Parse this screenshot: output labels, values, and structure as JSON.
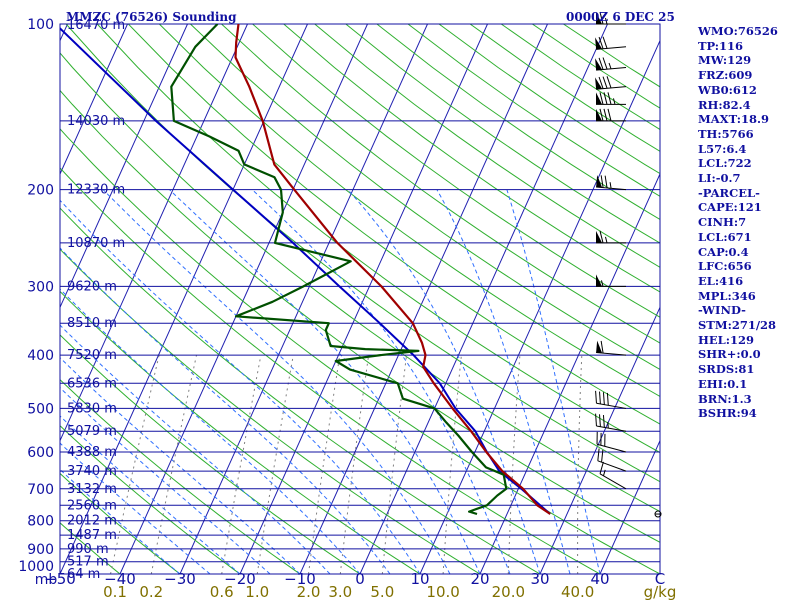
{
  "header": {
    "station": "MMZC (76526) Sounding",
    "time": "0000Z  6 DEC 25"
  },
  "stats": [
    "WMO:76526",
    "TP:116",
    "MW:129",
    "FRZ:609",
    "WB0:612",
    "RH:82.4",
    "MAXT:18.9",
    "TH:5766",
    "L57:6.4",
    "LCL:722",
    "LI:-0.7",
    "-PARCEL-",
    "CAPE:121",
    "CINH:7",
    "LCL:671",
    "CAP:0.4",
    "LFC:656",
    "EL:416",
    "MPL:346",
    "-WIND-",
    "STM:271/28",
    "HEL:129",
    "SHR+:0.0",
    "SRDS:81",
    "EHI:0.1",
    "BRN:1.3",
    "BSHR:94"
  ],
  "colors": {
    "isobar": "#1010a0",
    "isotherm": "#2020b0",
    "dry_adiabat": "#30b030",
    "moist_adiabat": "#3070ff",
    "mixing_ratio": "#808080",
    "temperature": "#a00000",
    "dewpoint": "#005000",
    "parcel": "#0000c0",
    "axis_label": "#1010a0",
    "mixing_label": "#807000",
    "wind_barb": "#000000"
  },
  "chart_data": {
    "type": "skew-t",
    "pressure_axis": {
      "ticks": [
        100,
        200,
        300,
        400,
        500,
        600,
        700,
        800,
        900,
        1000
      ],
      "unit_label": "mb",
      "range": [
        100,
        1000
      ]
    },
    "temperature_axis": {
      "ticks": [
        -50,
        -40,
        -30,
        -20,
        -10,
        0,
        10,
        20,
        30,
        40
      ],
      "extra_label": "C",
      "range": [
        -50,
        50
      ]
    },
    "mixing_ratio_labels": [
      "0.1",
      "0.2",
      "0.6",
      "1.0",
      "2.0",
      "3.0",
      "5.0",
      "10.0",
      "20.0",
      "40.0"
    ],
    "mixing_ratio_unit": "g/kg",
    "height_labels": [
      {
        "p": 100,
        "text": "16470 m"
      },
      {
        "p": 150,
        "text": "14030 m"
      },
      {
        "p": 200,
        "text": "12330 m"
      },
      {
        "p": 250,
        "text": "10870 m"
      },
      {
        "p": 300,
        "text": "9620 m"
      },
      {
        "p": 350,
        "text": "8510 m"
      },
      {
        "p": 400,
        "text": "7520 m"
      },
      {
        "p": 450,
        "text": "6536 m"
      },
      {
        "p": 500,
        "text": "5830 m"
      },
      {
        "p": 550,
        "text": "5079 m"
      },
      {
        "p": 600,
        "text": "4388 m"
      },
      {
        "p": 650,
        "text": "3740 m"
      },
      {
        "p": 700,
        "text": "3132 m"
      },
      {
        "p": 750,
        "text": "2560 m"
      },
      {
        "p": 800,
        "text": "2012 m"
      },
      {
        "p": 850,
        "text": "1487 m"
      },
      {
        "p": 900,
        "text": "990 m"
      },
      {
        "p": 950,
        "text": "517 m"
      },
      {
        "p": 1000,
        "text": "64 m"
      }
    ],
    "temperature": [
      {
        "p": 778,
        "t": 27.2
      },
      {
        "p": 750,
        "t": 24.4
      },
      {
        "p": 700,
        "t": 20.8
      },
      {
        "p": 650,
        "t": 16.0
      },
      {
        "p": 600,
        "t": 11.9
      },
      {
        "p": 550,
        "t": 7.8
      },
      {
        "p": 500,
        "t": 3.0
      },
      {
        "p": 450,
        "t": -2.0
      },
      {
        "p": 420,
        "t": -5.0
      },
      {
        "p": 400,
        "t": -5.5
      },
      {
        "p": 380,
        "t": -7.0
      },
      {
        "p": 350,
        "t": -10.0
      },
      {
        "p": 300,
        "t": -18.0
      },
      {
        "p": 250,
        "t": -28.6
      },
      {
        "p": 200,
        "t": -39.8
      },
      {
        "p": 180,
        "t": -45.0
      },
      {
        "p": 150,
        "t": -50.2
      },
      {
        "p": 130,
        "t": -55.0
      },
      {
        "p": 115,
        "t": -59.5
      },
      {
        "p": 108,
        "t": -60.5
      },
      {
        "p": 100,
        "t": -61.5
      }
    ],
    "dewpoint": [
      {
        "p": 778,
        "t": 15.0
      },
      {
        "p": 770,
        "t": 13.5
      },
      {
        "p": 750,
        "t": 16.0
      },
      {
        "p": 720,
        "t": 17.0
      },
      {
        "p": 700,
        "t": 18.0
      },
      {
        "p": 660,
        "t": 16.5
      },
      {
        "p": 640,
        "t": 13.0
      },
      {
        "p": 600,
        "t": 9.5
      },
      {
        "p": 560,
        "t": 6.0
      },
      {
        "p": 530,
        "t": 3.0
      },
      {
        "p": 500,
        "t": 0.0
      },
      {
        "p": 480,
        "t": -6.0
      },
      {
        "p": 450,
        "t": -8.0
      },
      {
        "p": 425,
        "t": -17.0
      },
      {
        "p": 410,
        "t": -20.0
      },
      {
        "p": 400,
        "t": -13.0
      },
      {
        "p": 393,
        "t": -7.0
      },
      {
        "p": 390,
        "t": -16.0
      },
      {
        "p": 385,
        "t": -22.0
      },
      {
        "p": 360,
        "t": -24.0
      },
      {
        "p": 350,
        "t": -24.0
      },
      {
        "p": 340,
        "t": -40.0
      },
      {
        "p": 320,
        "t": -35.0
      },
      {
        "p": 300,
        "t": -31.0
      },
      {
        "p": 270,
        "t": -25.0
      },
      {
        "p": 250,
        "t": -39.0
      },
      {
        "p": 220,
        "t": -40.0
      },
      {
        "p": 200,
        "t": -42.0
      },
      {
        "p": 190,
        "t": -44.0
      },
      {
        "p": 180,
        "t": -50.0
      },
      {
        "p": 170,
        "t": -52.0
      },
      {
        "p": 160,
        "t": -58.0
      },
      {
        "p": 150,
        "t": -65.0
      },
      {
        "p": 130,
        "t": -68.0
      },
      {
        "p": 110,
        "t": -67.0
      },
      {
        "p": 100,
        "t": -65.0
      }
    ],
    "parcel": [
      {
        "p": 778,
        "t": 27.2
      },
      {
        "p": 700,
        "t": 20.5
      },
      {
        "p": 650,
        "t": 15.5
      },
      {
        "p": 600,
        "t": 12.0
      },
      {
        "p": 550,
        "t": 8.5
      },
      {
        "p": 500,
        "t": 3.5
      },
      {
        "p": 450,
        "t": -1.0
      },
      {
        "p": 400,
        "t": -7.5
      },
      {
        "p": 350,
        "t": -15.5
      },
      {
        "p": 300,
        "t": -25.0
      },
      {
        "p": 250,
        "t": -36.0
      },
      {
        "p": 200,
        "t": -50.0
      },
      {
        "p": 150,
        "t": -68.0
      },
      {
        "p": 100,
        "t": -92.0
      }
    ],
    "wind_barbs": [
      {
        "p": 778,
        "dir": 90,
        "spd": 0
      },
      {
        "p": 700,
        "dir": 300,
        "spd": 15
      },
      {
        "p": 650,
        "dir": 290,
        "spd": 20
      },
      {
        "p": 600,
        "dir": 285,
        "spd": 30
      },
      {
        "p": 550,
        "dir": 280,
        "spd": 35
      },
      {
        "p": 500,
        "dir": 280,
        "spd": 40
      },
      {
        "p": 400,
        "dir": 275,
        "spd": 60
      },
      {
        "p": 300,
        "dir": 270,
        "spd": 55
      },
      {
        "p": 250,
        "dir": 270,
        "spd": 65
      },
      {
        "p": 200,
        "dir": 275,
        "spd": 75
      },
      {
        "p": 150,
        "dir": 270,
        "spd": 80
      },
      {
        "p": 140,
        "dir": 270,
        "spd": 85
      },
      {
        "p": 130,
        "dir": 265,
        "spd": 80
      },
      {
        "p": 120,
        "dir": 265,
        "spd": 75
      },
      {
        "p": 110,
        "dir": 265,
        "spd": 70
      },
      {
        "p": 100,
        "dir": 270,
        "spd": 65
      }
    ]
  }
}
